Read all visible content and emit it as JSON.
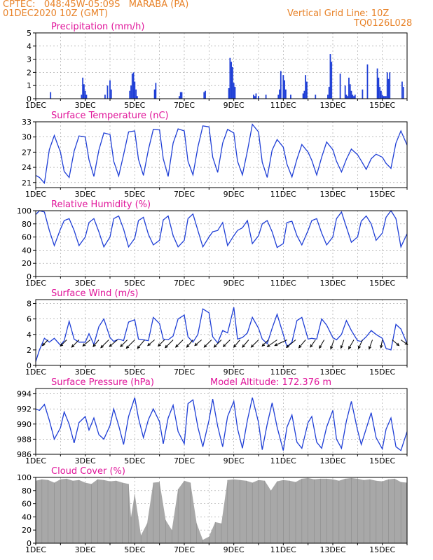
{
  "header": {
    "line1": "CPTEC:   048:45W-05:09S   MARABA (PA)",
    "line2": "01DEC2020 10Z (GMT)",
    "grid_note": "Vertical Grid Line: 10Z",
    "code": "TQ0126L028"
  },
  "colors": {
    "header": "#e8832a",
    "title": "#e0159a",
    "series": "#1f3fd6",
    "bars": "#1f3fd6",
    "cloud": "#a8a8a8",
    "wind_arrow": "#000000",
    "grid": "#999999"
  },
  "chart_data": [
    {
      "id": "precip",
      "type": "bar",
      "title": "Precipitation (mm/h)",
      "ylim": [
        0,
        5
      ],
      "yticks": [
        "0",
        "1",
        "2",
        "3",
        "4",
        "5"
      ],
      "xticks": [
        "1DEC",
        "3DEC",
        "5DEC",
        "7DEC",
        "9DEC",
        "11DEC",
        "13DEC",
        "15DEC"
      ],
      "xtick_days": [
        0,
        2,
        4,
        6,
        8,
        10,
        12,
        14
      ],
      "day_span": [
        0,
        15
      ],
      "t": [
        0.6,
        1.85,
        1.9,
        1.95,
        2.0,
        2.05,
        2.8,
        2.9,
        3.0,
        3.05,
        3.8,
        3.85,
        3.9,
        3.95,
        4.0,
        4.05,
        4.1,
        4.8,
        4.85,
        5.8,
        5.85,
        5.9,
        6.8,
        6.85,
        7.8,
        7.85,
        7.9,
        7.95,
        8.0,
        8.05,
        8.8,
        8.85,
        8.9,
        9.0,
        9.3,
        9.8,
        9.85,
        9.9,
        10.0,
        10.05,
        10.1,
        10.3,
        10.8,
        10.85,
        10.9,
        10.95,
        11.3,
        11.8,
        11.85,
        11.9,
        11.95,
        12.3,
        12.5,
        12.55,
        12.6,
        12.65,
        12.7,
        12.75,
        12.8,
        12.85,
        12.9,
        13.2,
        13.4,
        13.8,
        13.85,
        13.9,
        13.95,
        14.0,
        14.05,
        14.1,
        14.15,
        14.2,
        14.25,
        14.3,
        14.8,
        14.85
      ],
      "values": [
        0.5,
        0.3,
        1.6,
        1.1,
        0.6,
        0.3,
        0.3,
        1.0,
        1.4,
        0.7,
        0.6,
        1.0,
        1.9,
        2.0,
        1.3,
        0.7,
        0.2,
        0.7,
        1.2,
        0.2,
        0.5,
        0.5,
        0.5,
        0.6,
        0.8,
        3.1,
        2.8,
        2.4,
        1.2,
        0.9,
        0.3,
        0.2,
        0.4,
        0.2,
        0.3,
        0.3,
        0.7,
        2.1,
        1.8,
        1.4,
        0.7,
        0.3,
        0.4,
        0.6,
        1.8,
        1.3,
        0.3,
        0.3,
        0.9,
        3.4,
        2.8,
        1.9,
        1.0,
        0.3,
        0.2,
        1.6,
        1.1,
        0.6,
        0.3,
        0.2,
        0.3,
        0.7,
        2.6,
        2.3,
        1.6,
        0.9,
        0.6,
        0.3,
        0.2,
        0.2,
        0.2,
        2.0,
        1.5,
        2.0,
        1.3,
        0.9
      ]
    },
    {
      "id": "temp",
      "type": "line",
      "title": "Surface Temperature (nC)",
      "ylim": [
        20,
        33
      ],
      "yticks": [
        "21",
        "24",
        "27",
        "30",
        "33"
      ],
      "ytick_values": [
        21,
        24,
        27,
        30,
        33
      ],
      "xticks": [
        "1DEC",
        "3DEC",
        "5DEC",
        "7DEC",
        "9DEC",
        "11DEC",
        "13DEC",
        "15DEC"
      ],
      "day_span": [
        0,
        15
      ],
      "x": [
        0,
        0.15,
        0.35,
        0.55,
        0.75,
        1.0,
        1.15,
        1.35,
        1.55,
        1.75,
        2.0,
        2.15,
        2.35,
        2.55,
        2.75,
        3.0,
        3.15,
        3.35,
        3.55,
        3.75,
        4.0,
        4.15,
        4.35,
        4.55,
        4.75,
        5.0,
        5.15,
        5.35,
        5.55,
        5.75,
        6.0,
        6.15,
        6.35,
        6.55,
        6.75,
        7.0,
        7.15,
        7.35,
        7.55,
        7.75,
        8.0,
        8.15,
        8.35,
        8.55,
        8.75,
        9.0,
        9.15,
        9.35,
        9.55,
        9.75,
        10.0,
        10.15,
        10.35,
        10.55,
        10.75,
        11.0,
        11.15,
        11.35,
        11.55,
        11.75,
        12.0,
        12.15,
        12.35,
        12.55,
        12.75,
        13.0,
        13.15,
        13.35,
        13.55,
        13.75,
        14.0,
        14.15,
        14.35,
        14.55,
        14.75,
        15.0
      ],
      "y": [
        22.4,
        22.0,
        20.9,
        27.5,
        30.3,
        27.0,
        23.2,
        22.0,
        27.2,
        30.2,
        30.0,
        25.5,
        22.2,
        27.4,
        30.8,
        30.5,
        25.2,
        22.3,
        26.5,
        31.0,
        31.2,
        25.6,
        22.4,
        27.5,
        31.5,
        31.4,
        25.7,
        22.2,
        28.8,
        31.6,
        31.2,
        25.2,
        22.5,
        28.0,
        32.2,
        32.0,
        26.0,
        23.0,
        28.8,
        31.5,
        30.8,
        25.2,
        22.5,
        27.2,
        32.5,
        31.0,
        25.0,
        22.0,
        27.4,
        29.5,
        28.0,
        24.6,
        22.1,
        25.6,
        28.5,
        27.0,
        25.4,
        22.5,
        26.0,
        29.0,
        27.5,
        25.2,
        23.1,
        25.6,
        27.6,
        26.5,
        25.3,
        23.6,
        25.7,
        26.6,
        26.0,
        24.8,
        23.8,
        28.8,
        31.2,
        28.4
      ]
    },
    {
      "id": "rh",
      "type": "line",
      "title": "Relative Humidity (%)",
      "ylim": [
        0,
        100
      ],
      "yticks": [
        "0",
        "20",
        "40",
        "60",
        "80",
        "100"
      ],
      "ytick_values": [
        0,
        20,
        40,
        60,
        80,
        100
      ],
      "xticks": [
        "1DEC",
        "3DEC",
        "5DEC",
        "7DEC",
        "9DEC",
        "11DEC",
        "13DEC",
        "15DEC"
      ],
      "day_span": [
        0,
        15
      ],
      "x": [
        0,
        0.15,
        0.35,
        0.55,
        0.75,
        1.0,
        1.15,
        1.35,
        1.55,
        1.75,
        2.0,
        2.15,
        2.35,
        2.55,
        2.75,
        3.0,
        3.15,
        3.35,
        3.55,
        3.75,
        4.0,
        4.15,
        4.35,
        4.55,
        4.75,
        5.0,
        5.15,
        5.35,
        5.55,
        5.75,
        6.0,
        6.15,
        6.35,
        6.55,
        6.75,
        7.0,
        7.15,
        7.35,
        7.55,
        7.75,
        8.0,
        8.15,
        8.35,
        8.55,
        8.75,
        9.0,
        9.15,
        9.35,
        9.55,
        9.75,
        10.0,
        10.15,
        10.35,
        10.55,
        10.75,
        11.0,
        11.15,
        11.35,
        11.55,
        11.75,
        12.0,
        12.15,
        12.35,
        12.55,
        12.75,
        13.0,
        13.15,
        13.35,
        13.55,
        13.75,
        14.0,
        14.15,
        14.35,
        14.55,
        14.75,
        15.0
      ],
      "y": [
        94,
        100,
        98,
        70,
        47,
        72,
        85,
        88,
        70,
        47,
        60,
        82,
        88,
        68,
        45,
        60,
        88,
        92,
        72,
        45,
        58,
        85,
        90,
        64,
        48,
        55,
        86,
        92,
        62,
        45,
        55,
        88,
        95,
        70,
        45,
        60,
        68,
        70,
        82,
        47,
        62,
        70,
        74,
        85,
        50,
        62,
        80,
        85,
        68,
        44,
        50,
        82,
        84,
        62,
        48,
        70,
        85,
        88,
        66,
        48,
        60,
        88,
        98,
        75,
        52,
        60,
        84,
        92,
        80,
        55,
        66,
        90,
        100,
        88,
        45,
        65
      ]
    },
    {
      "id": "wind",
      "type": "line",
      "title": "Surface Wind (m/s)",
      "ylim": [
        0,
        8.5
      ],
      "yticks": [
        "0",
        "2",
        "4",
        "6",
        "8"
      ],
      "ytick_values": [
        0,
        2,
        4,
        6,
        8
      ],
      "xticks": [
        "1DEC",
        "3DEC",
        "5DEC",
        "7DEC",
        "9DEC",
        "11DEC",
        "13DEC",
        "15DEC"
      ],
      "day_span": [
        0,
        15
      ],
      "x": [
        0,
        0.15,
        0.35,
        0.55,
        0.75,
        1.0,
        1.15,
        1.35,
        1.55,
        1.75,
        2.0,
        2.15,
        2.35,
        2.55,
        2.75,
        3.0,
        3.15,
        3.35,
        3.55,
        3.75,
        4.0,
        4.15,
        4.35,
        4.55,
        4.75,
        5.0,
        5.15,
        5.35,
        5.55,
        5.75,
        6.0,
        6.15,
        6.35,
        6.55,
        6.75,
        7.0,
        7.15,
        7.35,
        7.55,
        7.75,
        8.0,
        8.15,
        8.35,
        8.55,
        8.75,
        9.0,
        9.15,
        9.35,
        9.55,
        9.75,
        10.0,
        10.15,
        10.35,
        10.55,
        10.75,
        11.0,
        11.15,
        11.35,
        11.55,
        11.75,
        12.0,
        12.15,
        12.35,
        12.55,
        12.75,
        13.0,
        13.15,
        13.35,
        13.55,
        13.75,
        14.0,
        14.15,
        14.35,
        14.55,
        14.75,
        15.0
      ],
      "y": [
        0.5,
        2.0,
        3.5,
        3.0,
        3.5,
        2.6,
        3.2,
        5.7,
        3.4,
        3.0,
        3.0,
        4.1,
        2.7,
        5.0,
        6.0,
        3.6,
        3.1,
        3.4,
        3.2,
        5.6,
        5.9,
        3.4,
        3.3,
        3.2,
        6.2,
        5.4,
        3.4,
        3.3,
        3.8,
        6.0,
        6.5,
        3.7,
        3.0,
        4.0,
        7.3,
        6.8,
        3.7,
        2.9,
        4.5,
        4.2,
        7.5,
        3.4,
        3.6,
        4.2,
        6.2,
        4.8,
        3.4,
        2.8,
        4.8,
        6.6,
        4.0,
        2.4,
        3.0,
        5.8,
        6.2,
        3.4,
        3.5,
        3.4,
        6.0,
        5.2,
        3.6,
        3.3,
        4.0,
        5.8,
        4.5,
        3.2,
        3.1,
        3.7,
        4.5,
        4.0,
        3.5,
        2.2,
        2.0,
        5.3,
        4.7,
        2.8
      ],
      "arrows": {
        "t": [
          0.5,
          1.25,
          1.75,
          2.2,
          2.55,
          2.95,
          3.3,
          3.7,
          4.0,
          4.4,
          4.8,
          5.2,
          5.55,
          5.95,
          6.35,
          6.7,
          7.1,
          7.5,
          7.85,
          8.25,
          8.6,
          9.0,
          9.4,
          9.75,
          10.15,
          10.5,
          10.9,
          11.3,
          11.65,
          12.05,
          12.45,
          12.85,
          13.2,
          13.6,
          14.0,
          14.4,
          14.75
        ],
        "speed": [
          2.5,
          3.0,
          4.0,
          3.5,
          3.0,
          4.5,
          4.0,
          3.5,
          5.0,
          4.5,
          3.0,
          3.0,
          4.5,
          4.0,
          3.5,
          3.0,
          4.0,
          4.0,
          3.5,
          3.5,
          3.5,
          4.0,
          3.0,
          5.0,
          6.0,
          5.0,
          4.0,
          3.0,
          3.5,
          3.5,
          3.0,
          4.0,
          3.5,
          3.5,
          2.5,
          3.0,
          2.5
        ],
        "dir_to": [
          225,
          225,
          225,
          230,
          220,
          225,
          230,
          225,
          225,
          220,
          230,
          225,
          225,
          225,
          220,
          230,
          225,
          225,
          225,
          220,
          220,
          225,
          225,
          235,
          245,
          230,
          220,
          215,
          210,
          200,
          200,
          210,
          205,
          200,
          190,
          130,
          125
        ]
      }
    },
    {
      "id": "pres",
      "type": "line",
      "title": "Surface Pressure (hPa)",
      "annotation": "Model Altitude: 172.376  m",
      "ylim": [
        986,
        994.7
      ],
      "yticks": [
        "986",
        "988",
        "990",
        "992",
        "994"
      ],
      "ytick_values": [
        986,
        988,
        990,
        992,
        994
      ],
      "xticks": [
        "1DEC",
        "3DEC",
        "5DEC",
        "7DEC",
        "9DEC",
        "11DEC",
        "13DEC",
        "15DEC"
      ],
      "day_span": [
        0,
        15
      ],
      "x": [
        0,
        0.15,
        0.35,
        0.55,
        0.75,
        1.0,
        1.15,
        1.35,
        1.55,
        1.75,
        2.0,
        2.15,
        2.35,
        2.55,
        2.75,
        3.0,
        3.15,
        3.35,
        3.55,
        3.75,
        4.0,
        4.15,
        4.35,
        4.55,
        4.75,
        5.0,
        5.15,
        5.35,
        5.55,
        5.75,
        6.0,
        6.15,
        6.35,
        6.55,
        6.75,
        7.0,
        7.15,
        7.35,
        7.55,
        7.75,
        8.0,
        8.15,
        8.35,
        8.55,
        8.75,
        9.0,
        9.15,
        9.35,
        9.55,
        9.75,
        10.0,
        10.15,
        10.35,
        10.55,
        10.75,
        11.0,
        11.15,
        11.35,
        11.55,
        11.75,
        12.0,
        12.15,
        12.35,
        12.55,
        12.75,
        13.0,
        13.15,
        13.35,
        13.55,
        13.75,
        14.0,
        14.15,
        14.35,
        14.55,
        14.75,
        15.0
      ],
      "y": [
        992,
        991.8,
        992.6,
        990.5,
        988.0,
        989.5,
        991.6,
        990.0,
        987.5,
        990.2,
        991.0,
        989.2,
        990.8,
        988.6,
        988.0,
        989.8,
        992.0,
        989.8,
        987.3,
        991.0,
        993.5,
        990.8,
        988.2,
        990.6,
        992.0,
        990.3,
        987.4,
        990.8,
        992.5,
        989.0,
        987.4,
        992.7,
        993.2,
        989.6,
        987.0,
        990.5,
        993.3,
        989.7,
        987.0,
        991.0,
        993.0,
        989.4,
        986.8,
        990.5,
        993.5,
        990.2,
        986.6,
        990.0,
        992.8,
        989.6,
        986.5,
        989.6,
        991.2,
        987.6,
        986.8,
        990.2,
        991.0,
        987.6,
        986.8,
        989.6,
        991.8,
        988.0,
        986.8,
        990.4,
        993.0,
        989.2,
        987.3,
        989.4,
        991.5,
        988.2,
        986.7,
        989.3,
        990.8,
        987.0,
        986.5,
        989.0
      ]
    },
    {
      "id": "cloud",
      "type": "area",
      "title": "Cloud Cover (%)",
      "ylim": [
        0,
        100
      ],
      "yticks": [
        "0",
        "20",
        "40",
        "60",
        "80",
        "100"
      ],
      "ytick_values": [
        0,
        20,
        40,
        60,
        80,
        100
      ],
      "xticks": [
        "1DEC",
        "3DEC",
        "5DEC",
        "7DEC",
        "9DEC",
        "11DEC",
        "13DEC",
        "15DEC"
      ],
      "day_span": [
        0,
        15
      ],
      "x": [
        0,
        0.25,
        0.5,
        0.75,
        1.0,
        1.25,
        1.5,
        1.75,
        2.0,
        2.25,
        2.5,
        2.75,
        3.0,
        3.25,
        3.5,
        3.75,
        3.85,
        4.0,
        4.25,
        4.5,
        4.75,
        5.0,
        5.25,
        5.5,
        5.75,
        6.0,
        6.25,
        6.5,
        6.75,
        7.0,
        7.25,
        7.5,
        7.75,
        8.0,
        8.25,
        8.5,
        8.75,
        9.0,
        9.25,
        9.5,
        9.75,
        10.0,
        10.25,
        10.5,
        10.75,
        11.0,
        11.25,
        11.5,
        11.75,
        12.0,
        12.25,
        12.5,
        12.75,
        13.0,
        13.25,
        13.5,
        13.75,
        14.0,
        14.25,
        14.5,
        14.75,
        15.0
      ],
      "y": [
        95,
        97,
        96,
        92,
        97,
        98,
        95,
        96,
        92,
        90,
        97,
        96,
        94,
        95,
        92,
        90,
        40,
        75,
        12,
        30,
        92,
        93,
        35,
        20,
        82,
        95,
        92,
        30,
        5,
        10,
        32,
        30,
        96,
        97,
        96,
        95,
        92,
        96,
        95,
        80,
        94,
        96,
        95,
        93,
        98,
        99,
        97,
        98,
        98,
        97,
        95,
        98,
        99,
        98,
        96,
        97,
        95,
        94,
        97,
        98,
        93,
        92
      ]
    }
  ]
}
